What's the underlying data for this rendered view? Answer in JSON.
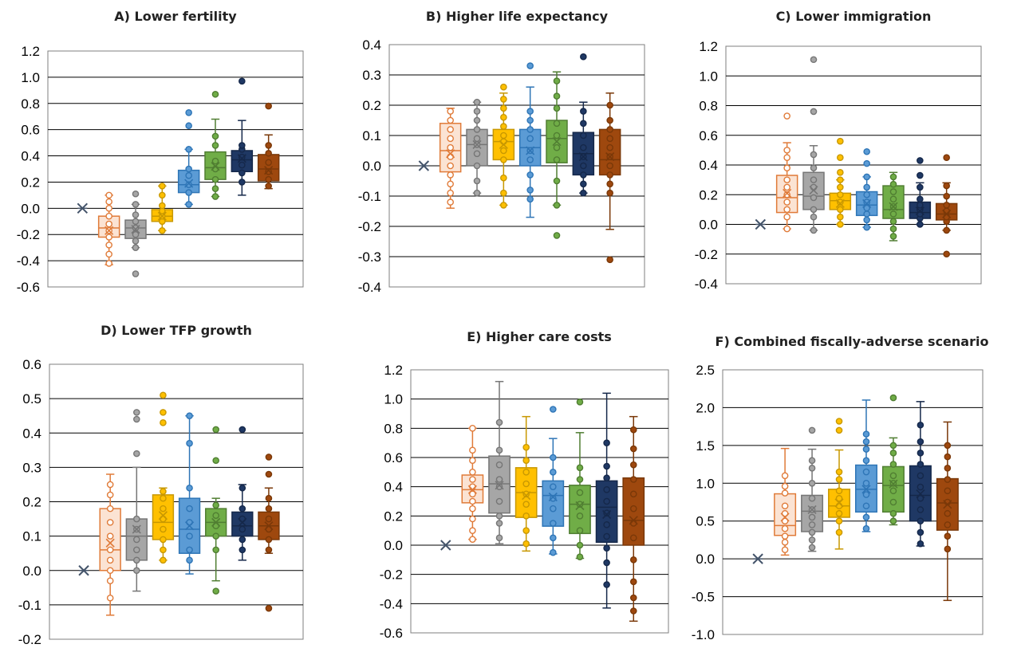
{
  "colors": {
    "tw": {
      "fill": "#fbe3d3",
      "stroke": "#e07b39",
      "pt": "#ffffff"
    },
    "gr": {
      "fill": "#a6a6a6",
      "stroke": "#767676",
      "pt": "#a6a6a6"
    },
    "ye": {
      "fill": "#ffc000",
      "stroke": "#c89800",
      "pt": "#ffc000"
    },
    "bl": {
      "fill": "#5b9bd5",
      "stroke": "#2e75b6",
      "pt": "#5b9bd5"
    },
    "gn": {
      "fill": "#70ad47",
      "stroke": "#507e32",
      "pt": "#70ad47"
    },
    "nv": {
      "fill": "#1f3864",
      "stroke": "#15284a",
      "pt": "#1f3864"
    },
    "br": {
      "fill": "#9e480e",
      "stroke": "#7a3808",
      "pt": "#9e480e"
    },
    "baseline": "#44546a"
  },
  "chart_data": [
    {
      "type": "boxplot",
      "title": "A) Lower fertility",
      "ylim": [
        -0.6,
        1.2
      ],
      "yticks": [
        "1.2",
        "1.0",
        "0.8",
        "0.6",
        "0.4",
        "0.2",
        "0.0",
        "-0.2",
        "-0.4",
        "-0.6"
      ],
      "baseline": 0.0,
      "boxes": [
        {
          "c": "tw",
          "q1": -0.22,
          "med": -0.15,
          "q3": -0.06,
          "lo": -0.43,
          "hi": 0.1,
          "mean": -0.17,
          "pts": [
            -0.42,
            -0.35,
            -0.28,
            -0.22,
            -0.17,
            -0.12,
            -0.06,
            0.0,
            0.05,
            0.1
          ]
        },
        {
          "c": "gr",
          "q1": -0.23,
          "med": -0.15,
          "q3": -0.09,
          "lo": -0.3,
          "hi": 0.03,
          "mean": -0.16,
          "pts": [
            -0.5,
            -0.3,
            -0.25,
            -0.2,
            -0.15,
            -0.1,
            -0.05,
            0.03,
            0.11
          ]
        },
        {
          "c": "ye",
          "q1": -0.1,
          "med": -0.06,
          "q3": -0.01,
          "lo": -0.17,
          "hi": 0.17,
          "mean": -0.06,
          "pts": [
            -0.17,
            -0.1,
            -0.06,
            -0.02,
            0.02,
            0.1,
            0.17
          ]
        },
        {
          "c": "bl",
          "q1": 0.12,
          "med": 0.18,
          "q3": 0.29,
          "lo": 0.03,
          "hi": 0.45,
          "mean": 0.19,
          "pts": [
            0.03,
            0.12,
            0.18,
            0.25,
            0.3,
            0.45,
            0.63,
            0.73
          ]
        },
        {
          "c": "gn",
          "q1": 0.22,
          "med": 0.31,
          "q3": 0.43,
          "lo": 0.09,
          "hi": 0.68,
          "mean": 0.32,
          "pts": [
            0.09,
            0.15,
            0.22,
            0.3,
            0.36,
            0.48,
            0.55,
            0.87
          ]
        },
        {
          "c": "nv",
          "q1": 0.28,
          "med": 0.37,
          "q3": 0.44,
          "lo": 0.1,
          "hi": 0.67,
          "mean": 0.38,
          "pts": [
            0.2,
            0.27,
            0.33,
            0.39,
            0.45,
            0.48,
            0.97
          ]
        },
        {
          "c": "br",
          "q1": 0.21,
          "med": 0.3,
          "q3": 0.41,
          "lo": 0.15,
          "hi": 0.56,
          "mean": 0.29,
          "pts": [
            0.17,
            0.22,
            0.28,
            0.35,
            0.42,
            0.48,
            0.78
          ]
        }
      ]
    },
    {
      "type": "boxplot",
      "title": "B) Higher life expectancy",
      "ylim": [
        -0.4,
        0.4
      ],
      "yticks": [
        "0.4",
        "0.3",
        "0.2",
        "0.1",
        "0.0",
        "-0.1",
        "-0.2",
        "-0.3",
        "-0.4"
      ],
      "baseline": 0.0,
      "boxes": [
        {
          "c": "tw",
          "q1": -0.02,
          "med": 0.05,
          "q3": 0.14,
          "lo": -0.14,
          "hi": 0.19,
          "mean": 0.04,
          "pts": [
            -0.12,
            -0.09,
            -0.06,
            -0.03,
            0.0,
            0.03,
            0.06,
            0.09,
            0.12,
            0.15,
            0.18
          ]
        },
        {
          "c": "gr",
          "q1": 0.0,
          "med": 0.07,
          "q3": 0.12,
          "lo": -0.09,
          "hi": 0.21,
          "mean": 0.07,
          "pts": [
            -0.09,
            -0.05,
            0.0,
            0.04,
            0.07,
            0.09,
            0.12,
            0.15,
            0.18,
            0.21
          ]
        },
        {
          "c": "ye",
          "q1": 0.02,
          "med": 0.08,
          "q3": 0.12,
          "lo": -0.13,
          "hi": 0.24,
          "mean": 0.07,
          "pts": [
            -0.13,
            -0.09,
            -0.04,
            0.02,
            0.05,
            0.08,
            0.1,
            0.13,
            0.16,
            0.19,
            0.22,
            0.26
          ]
        },
        {
          "c": "bl",
          "q1": 0.0,
          "med": 0.06,
          "q3": 0.12,
          "lo": -0.17,
          "hi": 0.26,
          "mean": 0.05,
          "pts": [
            -0.11,
            -0.08,
            -0.03,
            0.02,
            0.05,
            0.09,
            0.12,
            0.15,
            0.18,
            0.33
          ]
        },
        {
          "c": "gn",
          "q1": 0.01,
          "med": 0.09,
          "q3": 0.15,
          "lo": -0.13,
          "hi": 0.31,
          "mean": 0.08,
          "pts": [
            -0.23,
            -0.13,
            -0.05,
            0.02,
            0.06,
            0.1,
            0.14,
            0.19,
            0.23,
            0.28
          ]
        },
        {
          "c": "nv",
          "q1": -0.03,
          "med": 0.04,
          "q3": 0.11,
          "lo": -0.09,
          "hi": 0.21,
          "mean": 0.03,
          "pts": [
            -0.09,
            -0.06,
            -0.03,
            0.0,
            0.03,
            0.06,
            0.1,
            0.14,
            0.18,
            0.36
          ]
        },
        {
          "c": "br",
          "q1": -0.03,
          "med": 0.02,
          "q3": 0.12,
          "lo": -0.21,
          "hi": 0.24,
          "mean": 0.03,
          "pts": [
            -0.31,
            -0.09,
            -0.06,
            -0.03,
            0.0,
            0.03,
            0.06,
            0.09,
            0.12,
            0.15,
            0.2
          ]
        }
      ]
    },
    {
      "type": "boxplot",
      "title": "C) Lower immigration",
      "ylim": [
        -0.4,
        1.2
      ],
      "yticks": [
        "1.2",
        "1.0",
        "0.8",
        "0.6",
        "0.4",
        "0.2",
        "0.0",
        "-0.2",
        "-0.4"
      ],
      "baseline": 0.0,
      "boxes": [
        {
          "c": "tw",
          "q1": 0.08,
          "med": 0.18,
          "q3": 0.33,
          "lo": -0.03,
          "hi": 0.55,
          "mean": 0.21,
          "pts": [
            -0.03,
            0.05,
            0.1,
            0.15,
            0.2,
            0.25,
            0.3,
            0.38,
            0.45,
            0.5,
            0.73
          ]
        },
        {
          "c": "gr",
          "q1": 0.1,
          "med": 0.19,
          "q3": 0.35,
          "lo": -0.04,
          "hi": 0.53,
          "mean": 0.23,
          "pts": [
            -0.04,
            0.05,
            0.1,
            0.18,
            0.25,
            0.3,
            0.38,
            0.47,
            0.76,
            1.11
          ]
        },
        {
          "c": "ye",
          "q1": 0.1,
          "med": 0.16,
          "q3": 0.21,
          "lo": 0.0,
          "hi": 0.3,
          "mean": 0.14,
          "pts": [
            0.0,
            0.05,
            0.1,
            0.15,
            0.2,
            0.25,
            0.3,
            0.35,
            0.45,
            0.56
          ]
        },
        {
          "c": "bl",
          "q1": 0.06,
          "med": 0.13,
          "q3": 0.22,
          "lo": -0.02,
          "hi": 0.32,
          "mean": 0.14,
          "pts": [
            -0.02,
            0.03,
            0.07,
            0.11,
            0.15,
            0.2,
            0.25,
            0.32,
            0.41,
            0.49
          ]
        },
        {
          "c": "gn",
          "q1": 0.04,
          "med": 0.1,
          "q3": 0.26,
          "lo": -0.11,
          "hi": 0.35,
          "mean": 0.12,
          "pts": [
            -0.08,
            -0.03,
            0.02,
            0.07,
            0.12,
            0.17,
            0.22,
            0.27,
            0.32
          ]
        },
        {
          "c": "nv",
          "q1": 0.04,
          "med": 0.08,
          "q3": 0.15,
          "lo": 0.0,
          "hi": 0.28,
          "mean": 0.09,
          "pts": [
            0.0,
            0.04,
            0.07,
            0.1,
            0.13,
            0.17,
            0.25,
            0.33,
            0.43
          ]
        },
        {
          "c": "br",
          "q1": 0.03,
          "med": 0.07,
          "q3": 0.14,
          "lo": -0.04,
          "hi": 0.28,
          "mean": 0.07,
          "pts": [
            -0.2,
            -0.04,
            0.02,
            0.05,
            0.09,
            0.13,
            0.19,
            0.26,
            0.45
          ]
        }
      ]
    },
    {
      "type": "boxplot",
      "title": "D) Lower TFP growth",
      "ylim": [
        -0.2,
        0.6
      ],
      "yticks": [
        "0.6",
        "0.5",
        "0.4",
        "0.3",
        "0.2",
        "0.1",
        "0.0",
        "-0.1",
        "-0.2"
      ],
      "baseline": 0.0,
      "boxes": [
        {
          "c": "tw",
          "q1": 0.0,
          "med": 0.06,
          "q3": 0.18,
          "lo": -0.13,
          "hi": 0.28,
          "mean": 0.08,
          "pts": [
            -0.08,
            -0.03,
            0.0,
            0.03,
            0.06,
            0.1,
            0.14,
            0.18,
            0.22,
            0.25
          ]
        },
        {
          "c": "gr",
          "q1": 0.03,
          "med": 0.1,
          "q3": 0.15,
          "lo": -0.06,
          "hi": 0.3,
          "mean": 0.12,
          "pts": [
            0.0,
            0.03,
            0.06,
            0.09,
            0.12,
            0.15,
            0.34,
            0.44,
            0.46
          ]
        },
        {
          "c": "ye",
          "q1": 0.09,
          "med": 0.14,
          "q3": 0.22,
          "lo": 0.03,
          "hi": 0.24,
          "mean": 0.16,
          "pts": [
            0.03,
            0.06,
            0.09,
            0.12,
            0.15,
            0.18,
            0.21,
            0.23,
            0.43,
            0.46,
            0.51
          ]
        },
        {
          "c": "bl",
          "q1": 0.05,
          "med": 0.12,
          "q3": 0.21,
          "lo": -0.01,
          "hi": 0.45,
          "mean": 0.13,
          "pts": [
            0.03,
            0.06,
            0.1,
            0.14,
            0.18,
            0.24,
            0.37,
            0.45
          ]
        },
        {
          "c": "gn",
          "q1": 0.1,
          "med": 0.14,
          "q3": 0.18,
          "lo": -0.03,
          "hi": 0.21,
          "mean": 0.14,
          "pts": [
            -0.06,
            0.06,
            0.1,
            0.13,
            0.16,
            0.19,
            0.32,
            0.41
          ]
        },
        {
          "c": "nv",
          "q1": 0.1,
          "med": 0.13,
          "q3": 0.17,
          "lo": 0.03,
          "hi": 0.25,
          "mean": 0.14,
          "pts": [
            0.06,
            0.09,
            0.12,
            0.15,
            0.18,
            0.24,
            0.41
          ]
        },
        {
          "c": "br",
          "q1": 0.09,
          "med": 0.13,
          "q3": 0.17,
          "lo": 0.05,
          "hi": 0.24,
          "mean": 0.13,
          "pts": [
            -0.11,
            0.06,
            0.09,
            0.12,
            0.15,
            0.18,
            0.21,
            0.28,
            0.33
          ]
        }
      ]
    },
    {
      "type": "boxplot",
      "title": "E) Higher care costs",
      "ylim": [
        -0.6,
        1.2
      ],
      "yticks": [
        "1.2",
        "1.0",
        "0.8",
        "0.6",
        "0.4",
        "0.2",
        "0.0",
        "-0.2",
        "-0.4",
        "-0.6"
      ],
      "baseline": 0.0,
      "boxes": [
        {
          "c": "tw",
          "q1": 0.29,
          "med": 0.38,
          "q3": 0.48,
          "lo": 0.04,
          "hi": 0.8,
          "mean": 0.38,
          "pts": [
            0.04,
            0.1,
            0.18,
            0.25,
            0.3,
            0.35,
            0.4,
            0.45,
            0.5,
            0.58,
            0.65,
            0.8
          ]
        },
        {
          "c": "gr",
          "q1": 0.22,
          "med": 0.42,
          "q3": 0.61,
          "lo": 0.01,
          "hi": 1.12,
          "mean": 0.41,
          "pts": [
            0.05,
            0.15,
            0.2,
            0.3,
            0.4,
            0.45,
            0.55,
            0.65,
            0.84
          ]
        },
        {
          "c": "ye",
          "q1": 0.19,
          "med": 0.36,
          "q3": 0.53,
          "lo": -0.04,
          "hi": 0.88,
          "mean": 0.34,
          "pts": [
            0.01,
            0.1,
            0.2,
            0.28,
            0.35,
            0.42,
            0.5,
            0.58,
            0.67
          ]
        },
        {
          "c": "bl",
          "q1": 0.13,
          "med": 0.34,
          "q3": 0.44,
          "lo": -0.06,
          "hi": 0.73,
          "mean": 0.33,
          "pts": [
            -0.05,
            0.05,
            0.15,
            0.25,
            0.32,
            0.4,
            0.5,
            0.6,
            0.93
          ]
        },
        {
          "c": "gn",
          "q1": 0.08,
          "med": 0.28,
          "q3": 0.41,
          "lo": -0.09,
          "hi": 0.77,
          "mean": 0.27,
          "pts": [
            -0.08,
            0.0,
            0.1,
            0.2,
            0.28,
            0.36,
            0.45,
            0.53,
            0.98
          ]
        },
        {
          "c": "nv",
          "q1": 0.02,
          "med": 0.26,
          "q3": 0.44,
          "lo": -0.43,
          "hi": 1.04,
          "mean": 0.21,
          "pts": [
            -0.27,
            -0.12,
            -0.02,
            0.06,
            0.14,
            0.22,
            0.3,
            0.38,
            0.46,
            0.54,
            0.7
          ]
        },
        {
          "c": "br",
          "q1": 0.0,
          "med": 0.17,
          "q3": 0.46,
          "lo": -0.52,
          "hi": 0.88,
          "mean": 0.17,
          "pts": [
            -0.45,
            -0.36,
            -0.25,
            -0.1,
            0.05,
            0.15,
            0.25,
            0.35,
            0.45,
            0.55,
            0.66,
            0.79
          ]
        }
      ]
    },
    {
      "type": "boxplot",
      "title": "F) Combined fiscally-adverse scenario",
      "ylim": [
        -1.0,
        2.5
      ],
      "yticks": [
        "2.5",
        "2.0",
        "1.5",
        "1.0",
        "0.5",
        "0.0",
        "-0.5",
        "-1.0"
      ],
      "baseline": 0.0,
      "boxes": [
        {
          "c": "tw",
          "q1": 0.31,
          "med": 0.44,
          "q3": 0.86,
          "lo": 0.05,
          "hi": 1.46,
          "mean": 0.55,
          "pts": [
            0.12,
            0.22,
            0.3,
            0.4,
            0.5,
            0.6,
            0.7,
            0.87,
            0.96,
            1.1
          ]
        },
        {
          "c": "gr",
          "q1": 0.36,
          "med": 0.63,
          "q3": 0.84,
          "lo": 0.1,
          "hi": 1.45,
          "mean": 0.65,
          "pts": [
            0.15,
            0.25,
            0.35,
            0.45,
            0.55,
            0.65,
            0.8,
            1.0,
            1.2,
            1.3,
            1.7
          ]
        },
        {
          "c": "ye",
          "q1": 0.55,
          "med": 0.7,
          "q3": 0.92,
          "lo": 0.13,
          "hi": 1.44,
          "mean": 0.74,
          "pts": [
            0.35,
            0.5,
            0.6,
            0.7,
            0.8,
            0.9,
            1.05,
            1.15,
            1.7,
            1.82
          ]
        },
        {
          "c": "bl",
          "q1": 0.62,
          "med": 0.92,
          "q3": 1.24,
          "lo": 0.36,
          "hi": 2.1,
          "mean": 0.92,
          "pts": [
            0.4,
            0.55,
            0.7,
            0.85,
            1.0,
            1.15,
            1.3,
            1.45,
            1.55,
            1.65
          ]
        },
        {
          "c": "gn",
          "q1": 0.62,
          "med": 0.97,
          "q3": 1.22,
          "lo": 0.45,
          "hi": 1.6,
          "mean": 0.99,
          "pts": [
            0.5,
            0.6,
            0.75,
            0.9,
            1.0,
            1.1,
            1.25,
            1.4,
            1.5,
            2.13
          ]
        },
        {
          "c": "nv",
          "q1": 0.5,
          "med": 0.84,
          "q3": 1.23,
          "lo": 0.17,
          "hi": 2.08,
          "mean": 0.86,
          "pts": [
            0.2,
            0.35,
            0.5,
            0.65,
            0.8,
            0.95,
            1.1,
            1.25,
            1.4,
            1.55,
            1.77
          ]
        },
        {
          "c": "br",
          "q1": 0.38,
          "med": 0.74,
          "q3": 1.06,
          "lo": -0.55,
          "hi": 1.81,
          "mean": 0.72,
          "pts": [
            0.13,
            0.3,
            0.45,
            0.6,
            0.75,
            0.9,
            1.05,
            1.2,
            1.35,
            1.5
          ]
        }
      ]
    }
  ]
}
